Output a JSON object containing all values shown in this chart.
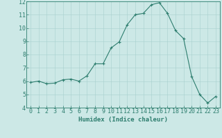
{
  "x": [
    0,
    1,
    2,
    3,
    4,
    5,
    6,
    7,
    8,
    9,
    10,
    11,
    12,
    13,
    14,
    15,
    16,
    17,
    18,
    19,
    20,
    21,
    22,
    23
  ],
  "y": [
    5.9,
    6.0,
    5.8,
    5.85,
    6.1,
    6.15,
    6.0,
    6.4,
    7.3,
    7.3,
    8.5,
    8.95,
    10.25,
    11.0,
    11.1,
    11.75,
    11.9,
    11.1,
    9.8,
    9.2,
    6.35,
    5.0,
    4.35,
    4.85
  ],
  "line_color": "#2d7d6e",
  "marker": "+",
  "marker_size": 3,
  "marker_linewidth": 0.8,
  "bg_color": "#cce8e6",
  "grid_color": "#a8d0ce",
  "xlabel": "Humidex (Indice chaleur)",
  "xlim": [
    -0.5,
    23.5
  ],
  "ylim": [
    4,
    12
  ],
  "yticks": [
    4,
    5,
    6,
    7,
    8,
    9,
    10,
    11,
    12
  ],
  "xticks": [
    0,
    1,
    2,
    3,
    4,
    5,
    6,
    7,
    8,
    9,
    10,
    11,
    12,
    13,
    14,
    15,
    16,
    17,
    18,
    19,
    20,
    21,
    22,
    23
  ],
  "tick_color": "#2d7d6e",
  "label_fontsize": 6.5,
  "tick_fontsize": 6,
  "line_width": 0.8
}
